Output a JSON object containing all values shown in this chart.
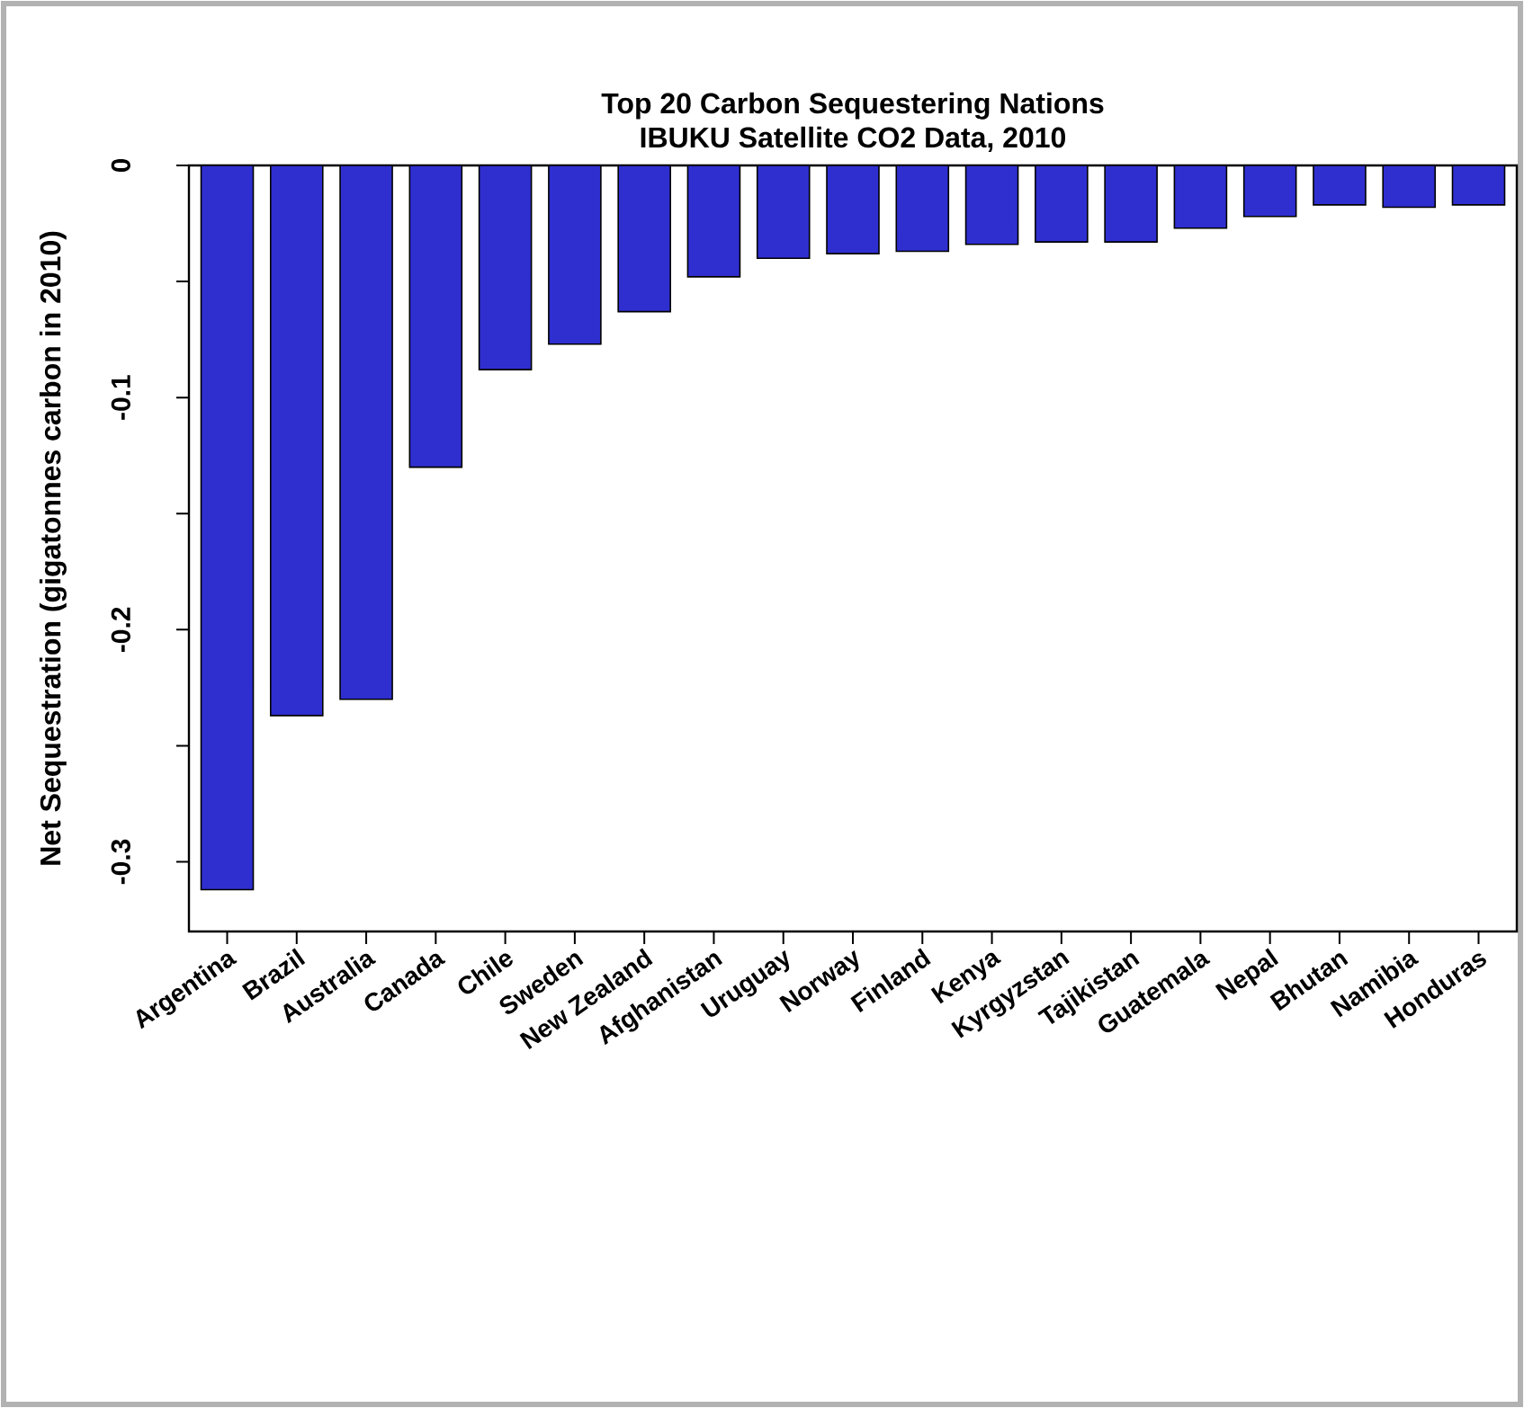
{
  "chart_data": {
    "type": "bar",
    "title": "Top 20 Carbon Sequestering Nations\nIBUKU Satellite CO2 Data, 2010",
    "ylabel": "Net Sequestration (gigatonnes carbon in 2010)",
    "categories": [
      "Argentina",
      "Brazil",
      "Australia",
      "Canada",
      "Chile",
      "Sweden",
      "New Zealand",
      "Afghanistan",
      "Uruguay",
      "Norway",
      "Finland",
      "Kenya",
      "Kyrgyzstan",
      "Tajikistan",
      "Guatemala",
      "Nepal",
      "Bhutan",
      "Namibia",
      "Honduras"
    ],
    "values": [
      -0.312,
      -0.237,
      -0.23,
      -0.13,
      -0.088,
      -0.077,
      -0.063,
      -0.048,
      -0.04,
      -0.038,
      -0.037,
      -0.034,
      -0.033,
      -0.033,
      -0.027,
      -0.022,
      -0.017,
      -0.018,
      -0.017
    ],
    "color": "#2f2fd0",
    "ylim": [
      -0.33,
      0
    ],
    "yticks": [
      {
        "value": -0.3,
        "label": "-0.3"
      },
      {
        "value": -0.25,
        "label": null
      },
      {
        "value": -0.2,
        "label": "-0.2"
      },
      {
        "value": -0.15,
        "label": null
      },
      {
        "value": -0.1,
        "label": "-0.1"
      },
      {
        "value": -0.05,
        "label": null
      },
      0
    ],
    "grid": false
  }
}
